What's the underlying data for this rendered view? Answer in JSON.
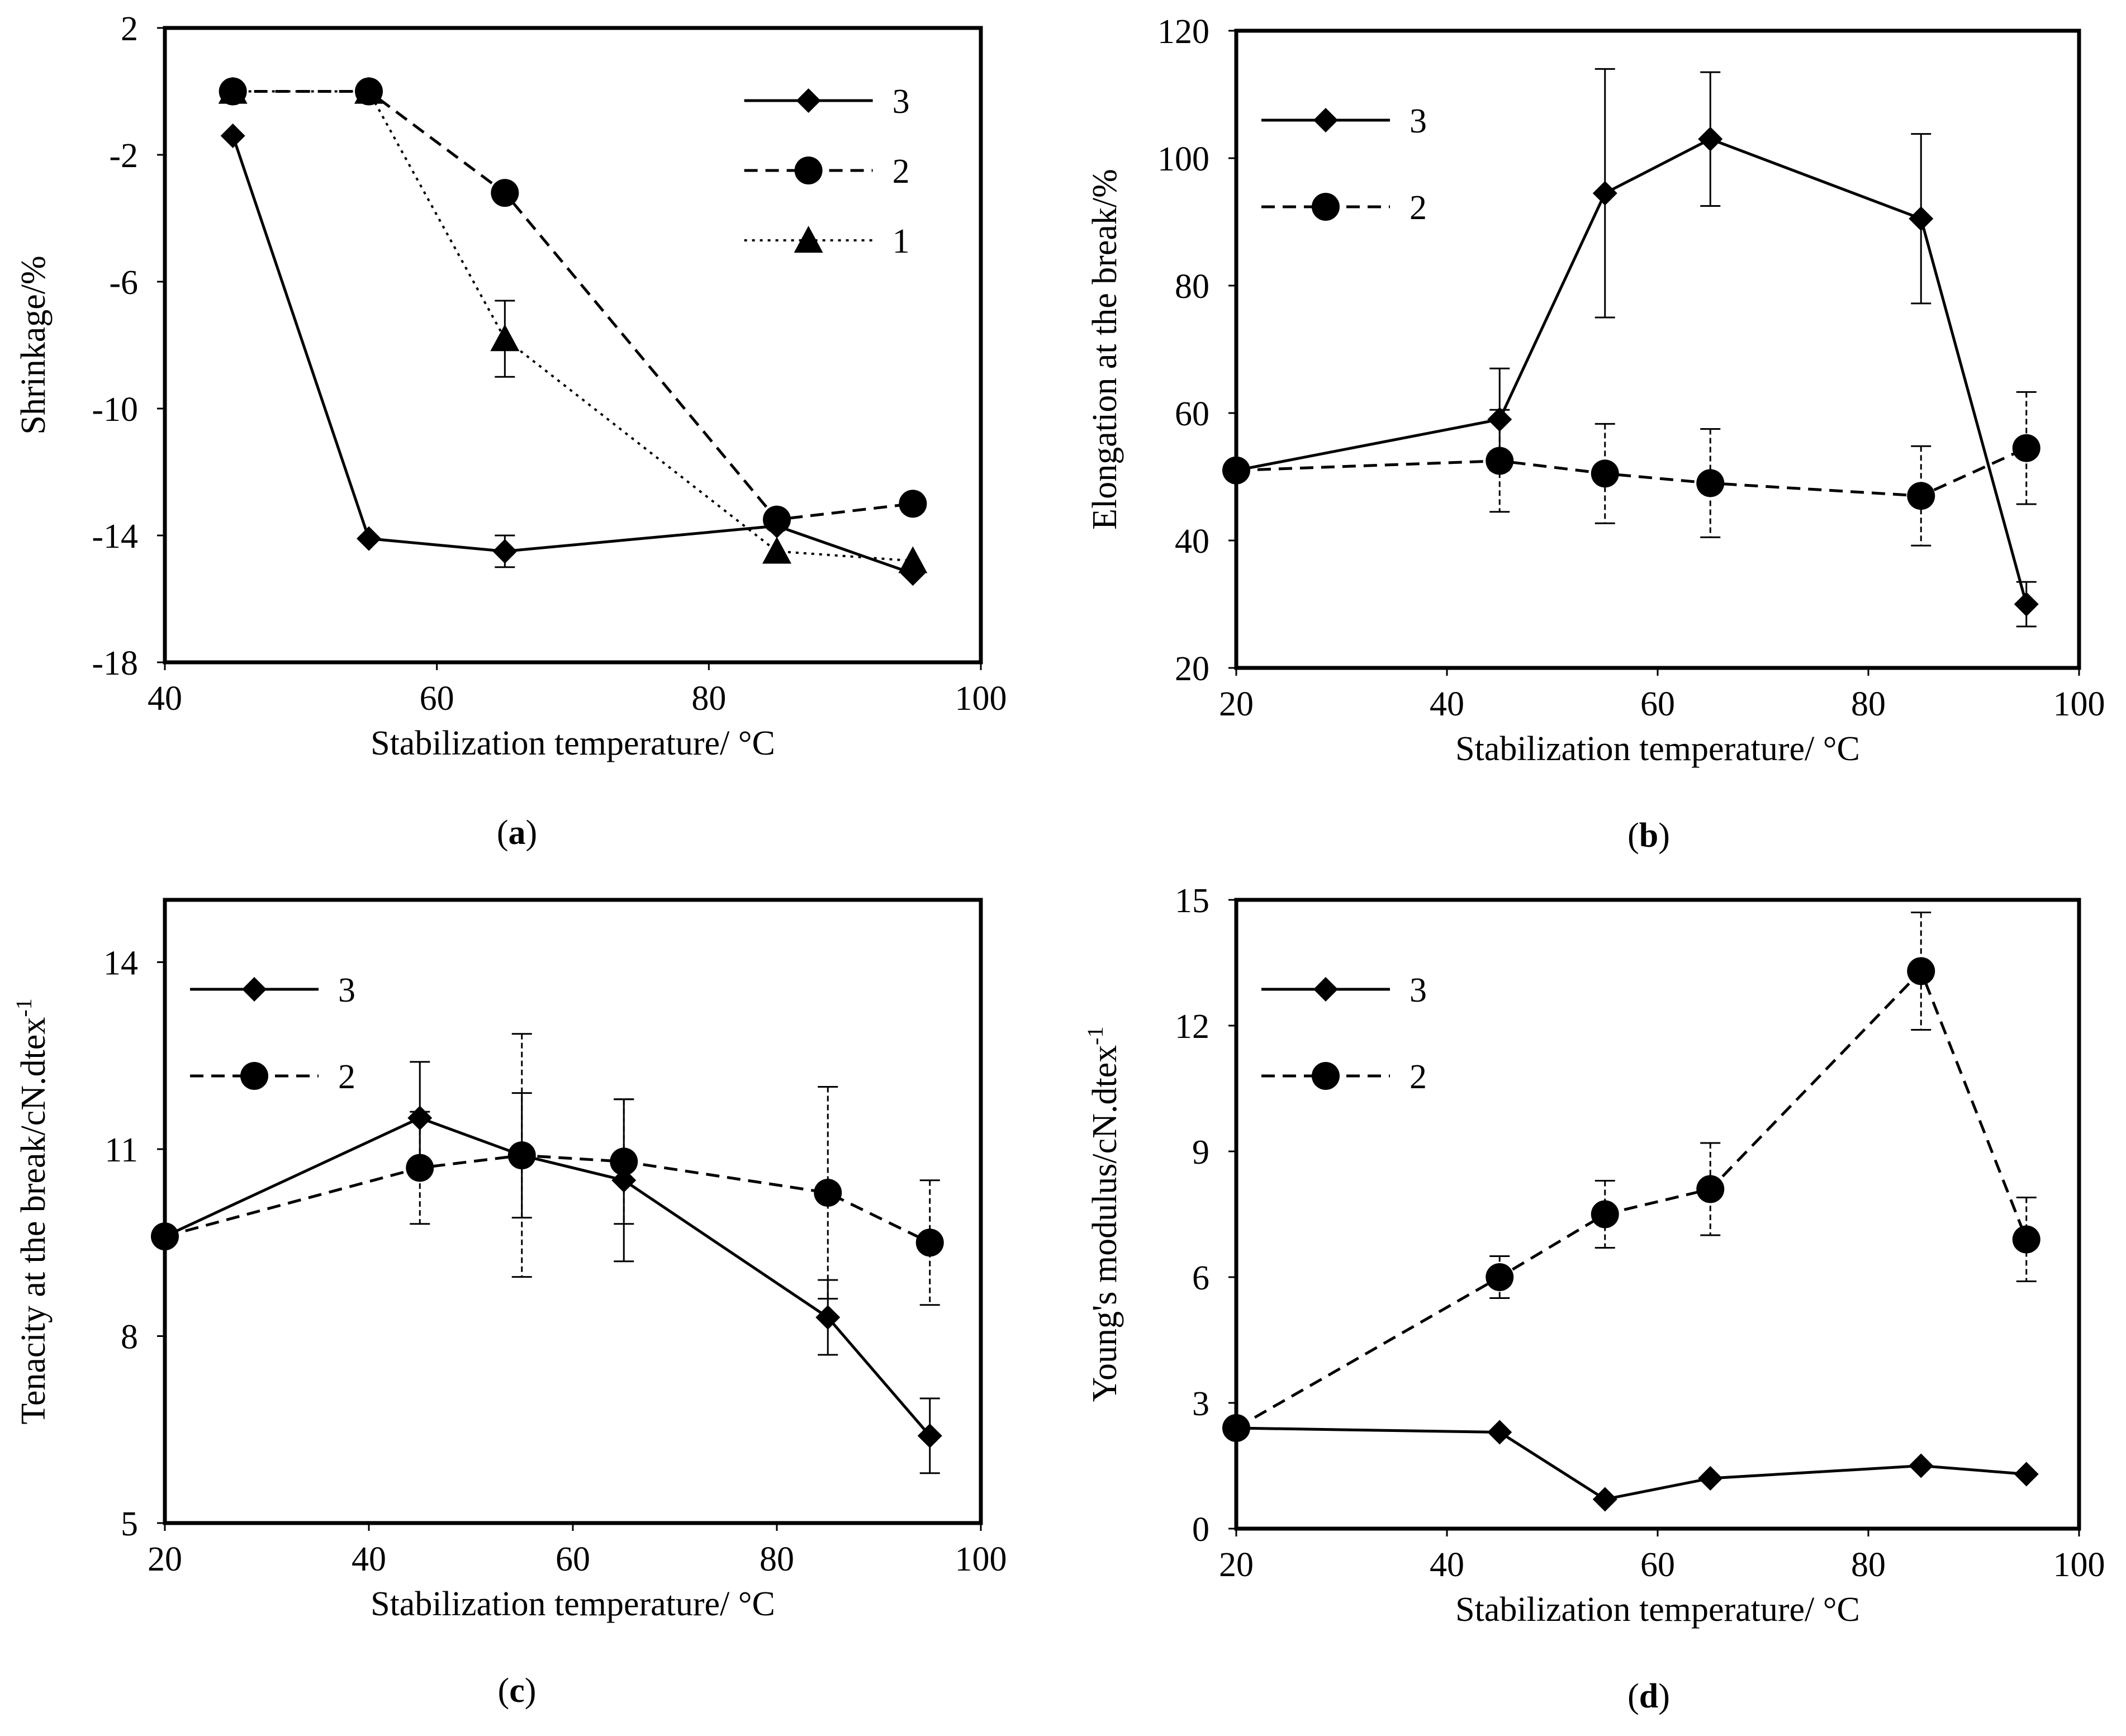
{
  "chart_data": [
    {
      "id": "a",
      "type": "line",
      "panel_label": "a",
      "xlabel": "Stabilization temperature/ °C",
      "ylabel": "Shrinkage/%",
      "ylabel_sup": "",
      "xlim": [
        40,
        100
      ],
      "xticks": [
        40,
        60,
        80,
        100
      ],
      "xtick_labels": [
        "40",
        "60",
        "80",
        "100"
      ],
      "ylim": [
        -18,
        2
      ],
      "yticks": [
        -18,
        -14,
        -10,
        -6,
        -2,
        2
      ],
      "ytick_labels": [
        "-18",
        "-14",
        "-10",
        "-6",
        "-2",
        "2"
      ],
      "legend_position": "top-right",
      "series": [
        {
          "name": "3",
          "marker": "diamond",
          "line": "solid",
          "x": [
            45,
            55,
            65,
            85,
            95
          ],
          "y": [
            -1.4,
            -14.1,
            -14.5,
            -13.7,
            -15.2
          ],
          "err": [
            0,
            0,
            0.5,
            0,
            0
          ]
        },
        {
          "name": "2",
          "marker": "circle",
          "line": "dashed",
          "x": [
            45,
            55,
            65,
            85,
            95
          ],
          "y": [
            0,
            0,
            -3.2,
            -13.5,
            -13.0
          ],
          "err": [
            0,
            0,
            0,
            0,
            0
          ]
        },
        {
          "name": "1",
          "marker": "triangle",
          "line": "dotted",
          "x": [
            45,
            55,
            65,
            85,
            95
          ],
          "y": [
            0,
            0,
            -7.8,
            -14.5,
            -14.8
          ],
          "err": [
            0,
            0,
            1.2,
            0,
            0
          ]
        }
      ]
    },
    {
      "id": "b",
      "type": "line",
      "panel_label": "b",
      "xlabel": "Stabilization temperature/ °C",
      "ylabel": "Elongation at the break/%",
      "ylabel_sup": "",
      "xlim": [
        20,
        100
      ],
      "xticks": [
        20,
        40,
        60,
        80,
        100
      ],
      "xtick_labels": [
        "20",
        "40",
        "60",
        "80",
        "100"
      ],
      "ylim": [
        20,
        120
      ],
      "yticks": [
        20,
        40,
        60,
        80,
        100,
        120
      ],
      "ytick_labels": [
        "20",
        "40",
        "60",
        "80",
        "100",
        "120"
      ],
      "legend_position": "top-left",
      "series": [
        {
          "name": "3",
          "marker": "diamond",
          "line": "solid",
          "x": [
            20,
            45,
            55,
            65,
            85,
            95
          ],
          "y": [
            51,
            59,
            94.5,
            103,
            90.5,
            30
          ],
          "err": [
            0,
            8,
            19.5,
            10.5,
            13.3,
            3.5
          ]
        },
        {
          "name": "2",
          "marker": "circle",
          "line": "dashed",
          "x": [
            20,
            45,
            55,
            65,
            85,
            95
          ],
          "y": [
            51,
            52.5,
            50.5,
            49,
            47,
            54.5
          ],
          "err": [
            0,
            8,
            7.8,
            8.5,
            7.8,
            8.8
          ]
        }
      ]
    },
    {
      "id": "c",
      "type": "line",
      "panel_label": "c",
      "xlabel": "Stabilization temperature/ °C",
      "ylabel": "Tenacity at the break/cN.dtex",
      "ylabel_sup": "-1",
      "xlim": [
        20,
        100
      ],
      "xticks": [
        20,
        40,
        60,
        80,
        100
      ],
      "xtick_labels": [
        "20",
        "40",
        "60",
        "80",
        "100"
      ],
      "ylim": [
        5,
        15
      ],
      "yticks": [
        5,
        8,
        11,
        14
      ],
      "ytick_labels": [
        "5",
        "8",
        "11",
        "14"
      ],
      "legend_position": "top-left",
      "series": [
        {
          "name": "3",
          "marker": "diamond",
          "line": "solid",
          "x": [
            20,
            45,
            55,
            65,
            85,
            95
          ],
          "y": [
            9.6,
            11.5,
            10.9,
            10.5,
            8.3,
            6.4
          ],
          "err": [
            0,
            0.9,
            1.0,
            1.3,
            0.6,
            0.6
          ]
        },
        {
          "name": "2",
          "marker": "circle",
          "line": "dashed",
          "x": [
            20,
            45,
            55,
            65,
            85,
            95
          ],
          "y": [
            9.6,
            10.7,
            10.9,
            10.8,
            10.3,
            9.5
          ],
          "err": [
            0,
            0.9,
            1.95,
            1.0,
            1.7,
            1.0
          ]
        }
      ]
    },
    {
      "id": "d",
      "type": "line",
      "panel_label": "d",
      "xlabel": "Stabilization temperature/ °C",
      "ylabel": "Young's modulus/cN.dtex",
      "ylabel_sup": "-1",
      "xlim": [
        20,
        100
      ],
      "xticks": [
        20,
        40,
        60,
        80,
        100
      ],
      "xtick_labels": [
        "20",
        "40",
        "60",
        "80",
        "100"
      ],
      "ylim": [
        0,
        15
      ],
      "yticks": [
        0,
        3,
        6,
        9,
        12,
        15
      ],
      "ytick_labels": [
        "0",
        "3",
        "6",
        "9",
        "12",
        "15"
      ],
      "legend_position": "top-left",
      "series": [
        {
          "name": "3",
          "marker": "diamond",
          "line": "solid",
          "x": [
            20,
            45,
            55,
            65,
            85,
            95
          ],
          "y": [
            2.4,
            2.3,
            0.7,
            1.2,
            1.5,
            1.3
          ],
          "err": [
            0,
            0,
            0,
            0,
            0,
            0
          ]
        },
        {
          "name": "2",
          "marker": "circle",
          "line": "dashed",
          "x": [
            20,
            45,
            55,
            65,
            85,
            95
          ],
          "y": [
            2.4,
            6.0,
            7.5,
            8.1,
            13.3,
            6.9
          ],
          "err": [
            0,
            0.5,
            0.8,
            1.1,
            1.4,
            1.0
          ]
        }
      ]
    }
  ]
}
